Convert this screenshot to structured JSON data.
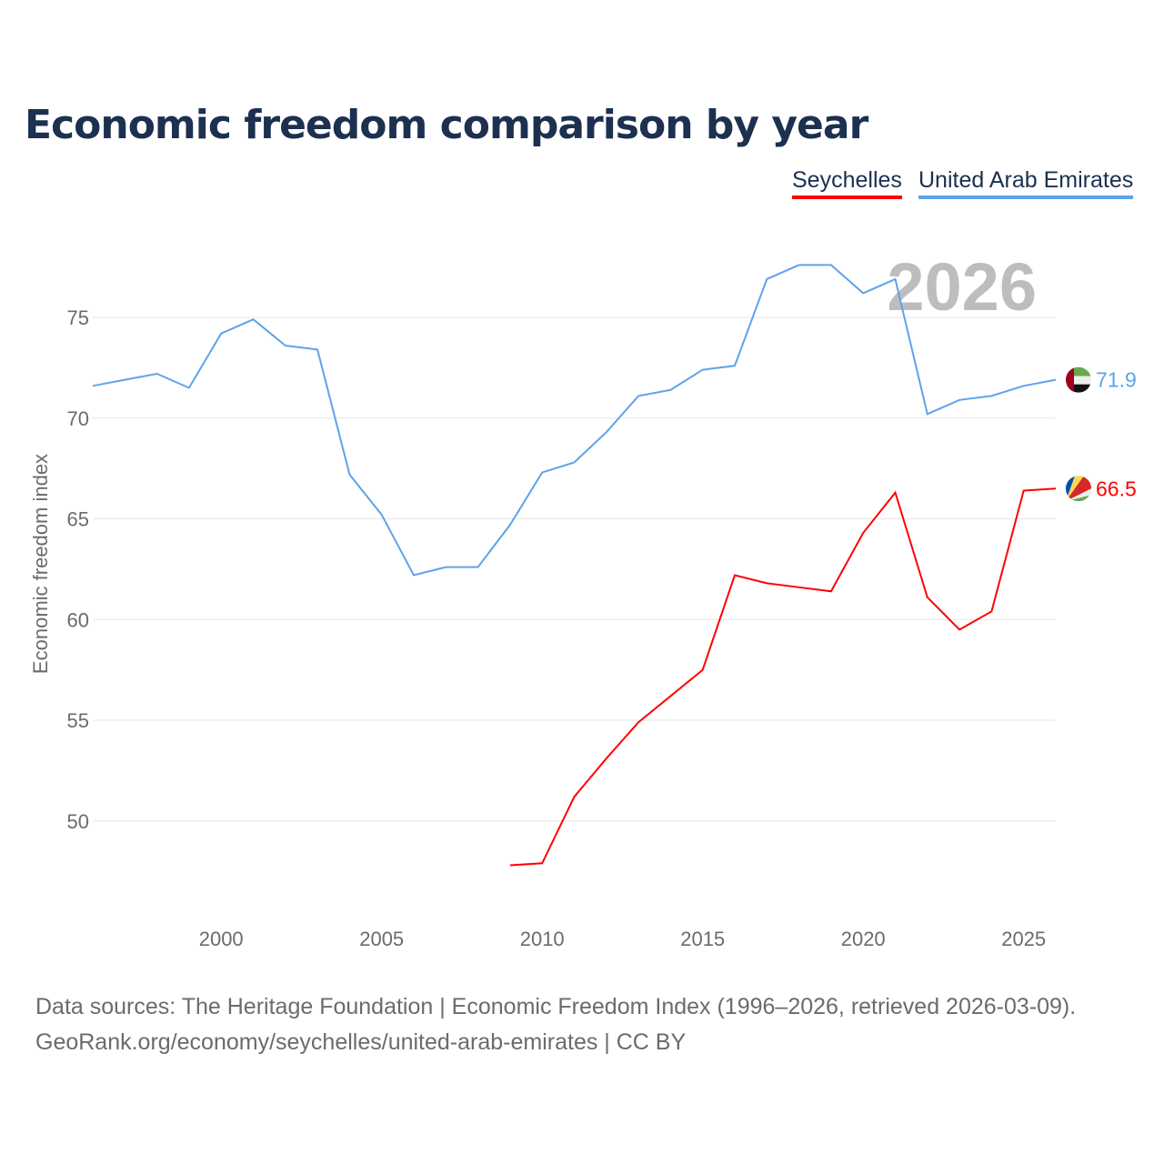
{
  "chart_data": {
    "type": "line",
    "title": "Economic freedom comparison by year",
    "xlabel": "",
    "ylabel": "Economic freedom index",
    "xlim": [
      1996,
      2026
    ],
    "ylim": [
      45,
      79
    ],
    "yticks": [
      50,
      55,
      60,
      65,
      70,
      75
    ],
    "xticks": [
      2000,
      2005,
      2010,
      2015,
      2020,
      2025
    ],
    "grid": true,
    "year_label": "2026",
    "series": [
      {
        "name": "Seychelles",
        "color": "#ff0000",
        "end_label": "66.5",
        "flag": "seychelles-flag",
        "x": [
          2009,
          2010,
          2011,
          2012,
          2013,
          2014,
          2015,
          2016,
          2017,
          2018,
          2019,
          2020,
          2021,
          2022,
          2023,
          2024,
          2025,
          2026
        ],
        "values": [
          47.8,
          47.9,
          51.2,
          53.1,
          54.9,
          56.2,
          57.5,
          62.2,
          61.8,
          61.6,
          61.4,
          64.3,
          66.3,
          61.1,
          59.5,
          60.4,
          66.4,
          66.5
        ]
      },
      {
        "name": "United Arab Emirates",
        "color": "#5ea3ea",
        "end_label": "71.9",
        "flag": "uae-flag",
        "x": [
          1996,
          1997,
          1998,
          1999,
          2000,
          2001,
          2002,
          2003,
          2004,
          2005,
          2006,
          2007,
          2008,
          2009,
          2010,
          2011,
          2012,
          2013,
          2014,
          2015,
          2016,
          2017,
          2018,
          2019,
          2020,
          2021,
          2022,
          2023,
          2024,
          2025,
          2026
        ],
        "values": [
          71.6,
          71.9,
          72.2,
          71.5,
          74.2,
          74.9,
          73.6,
          73.4,
          67.2,
          65.2,
          62.2,
          62.6,
          62.6,
          64.7,
          67.3,
          67.8,
          69.3,
          71.1,
          71.4,
          72.4,
          72.6,
          76.9,
          77.6,
          77.6,
          76.2,
          76.9,
          70.2,
          70.9,
          71.1,
          71.6,
          71.9
        ]
      }
    ]
  },
  "footer": {
    "line1": "Data sources: The Heritage Foundation | Economic Freedom Index (1996–2026, retrieved 2026-03-09).",
    "line2": "GeoRank.org/economy/seychelles/united-arab-emirates | CC BY"
  }
}
